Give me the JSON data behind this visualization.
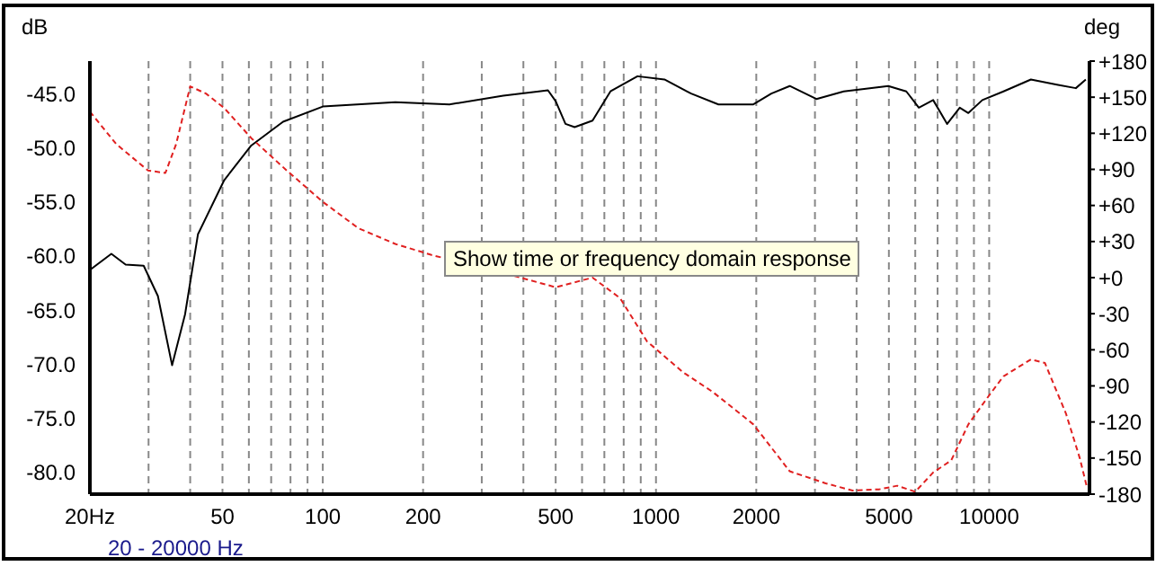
{
  "chart_data": {
    "type": "line",
    "xlabel": null,
    "ylabel": "dB",
    "y2label": "deg",
    "annotations": [
      "Show time or frequency domain response",
      "20 - 20000 Hz"
    ],
    "log": "x",
    "xlim": [
      20,
      20000
    ],
    "xticks": [
      {
        "value": 20,
        "label": "20Hz"
      },
      {
        "value": 30,
        "label": null
      },
      {
        "value": 40,
        "label": null
      },
      50,
      {
        "value": 60,
        "label": null
      },
      {
        "value": 70,
        "label": null
      },
      {
        "value": 80,
        "label": null
      },
      {
        "value": 90,
        "label": null
      },
      100,
      200,
      {
        "value": 300,
        "label": null
      },
      {
        "value": 400,
        "label": null
      },
      500,
      {
        "value": 600,
        "label": null
      },
      {
        "value": 700,
        "label": null
      },
      {
        "value": 800,
        "label": null
      },
      {
        "value": 900,
        "label": null
      },
      1000,
      2000,
      {
        "value": 3000,
        "label": null
      },
      {
        "value": 4000,
        "label": null
      },
      5000,
      {
        "value": 6000,
        "label": null
      },
      {
        "value": 7000,
        "label": null
      },
      {
        "value": 8000,
        "label": null
      },
      {
        "value": 9000,
        "label": null
      },
      10000,
      {
        "value": 20000,
        "label": null
      }
    ],
    "ylim": [
      -82,
      -42
    ],
    "yticks": [
      {
        "value": -45,
        "label": "-45.0"
      },
      {
        "value": -50,
        "label": "-50.0"
      },
      {
        "value": -55,
        "label": "-55.0"
      },
      {
        "value": -60,
        "label": "-60.0"
      },
      {
        "value": -65,
        "label": "-65.0"
      },
      {
        "value": -70,
        "label": "-70.0"
      },
      {
        "value": -75,
        "label": "-75.0"
      },
      {
        "value": -80,
        "label": "-80.0"
      }
    ],
    "y2lim": [
      -180,
      180
    ],
    "y2ticks": [
      {
        "value": 180,
        "label": "+180"
      },
      {
        "value": 150,
        "label": "+150"
      },
      {
        "value": 120,
        "label": "+120"
      },
      {
        "value": 90,
        "label": "+90"
      },
      {
        "value": 60,
        "label": "+60"
      },
      {
        "value": 30,
        "label": "+30"
      },
      {
        "value": 0,
        "label": "+0"
      },
      -30,
      -60,
      -90,
      -120,
      -150,
      -180
    ],
    "grid": true,
    "legend": false,
    "marker": "none",
    "series": [
      {
        "color": "#000000",
        "line_style": "solid",
        "x": [
          20,
          23.2,
          25.6,
          29,
          32,
          35.3,
          38.6,
          42.2,
          50.6,
          61,
          76,
          100,
          165,
          240,
          348,
          445,
          474,
          500,
          535,
          570,
          645,
          730,
          880,
          1060,
          1275,
          1540,
          1960,
          2220,
          2520,
          3030,
          3660,
          4980,
          5640,
          6150,
          6790,
          7480,
          8160,
          8660,
          9540,
          11040,
          13340,
          16100,
          18200,
          19500
        ],
        "values": [
          -61.3,
          -59.8,
          -60.8,
          -60.9,
          -63.7,
          -70.1,
          -65.4,
          -58,
          -53,
          -49.8,
          -47.6,
          -46.2,
          -45.8,
          -46,
          -45.2,
          -44.8,
          -44.7,
          -45.7,
          -47.8,
          -48.1,
          -47.5,
          -44.8,
          -43.4,
          -43.7,
          -45,
          -46,
          -46,
          -45,
          -44.3,
          -45.5,
          -44.8,
          -44.3,
          -44.8,
          -46.3,
          -45.6,
          -47.8,
          -46.3,
          -46.8,
          -45.6,
          -44.8,
          -43.7,
          -44.2,
          -44.5,
          -43.7
        ]
      },
      {
        "color": "#e02020",
        "line_style": "dashed",
        "axis": "y2",
        "x": [
          20,
          24,
          29.9,
          33.7,
          36.3,
          40,
          44.6,
          50.6,
          61,
          78,
          100,
          128,
          165,
          211,
          270,
          392,
          500,
          645,
          780,
          940,
          1210,
          1480,
          1960,
          2520,
          3230,
          3890,
          4680,
          5300,
          6000,
          6790,
          7690,
          8660,
          9810,
          11040,
          13340,
          14700,
          17000,
          18700,
          19600
        ],
        "values": [
          138,
          111,
          89,
          87,
          111,
          159,
          153,
          141,
          116,
          89,
          63,
          41,
          28,
          19,
          null,
          0,
          -8,
          0,
          -17,
          -53,
          -79,
          -95,
          -122,
          -161,
          -171,
          -177,
          -176,
          -173,
          -178,
          -162,
          -152,
          -122,
          -101,
          -82,
          -68,
          -71,
          -113,
          -150,
          -173
        ]
      }
    ]
  }
}
